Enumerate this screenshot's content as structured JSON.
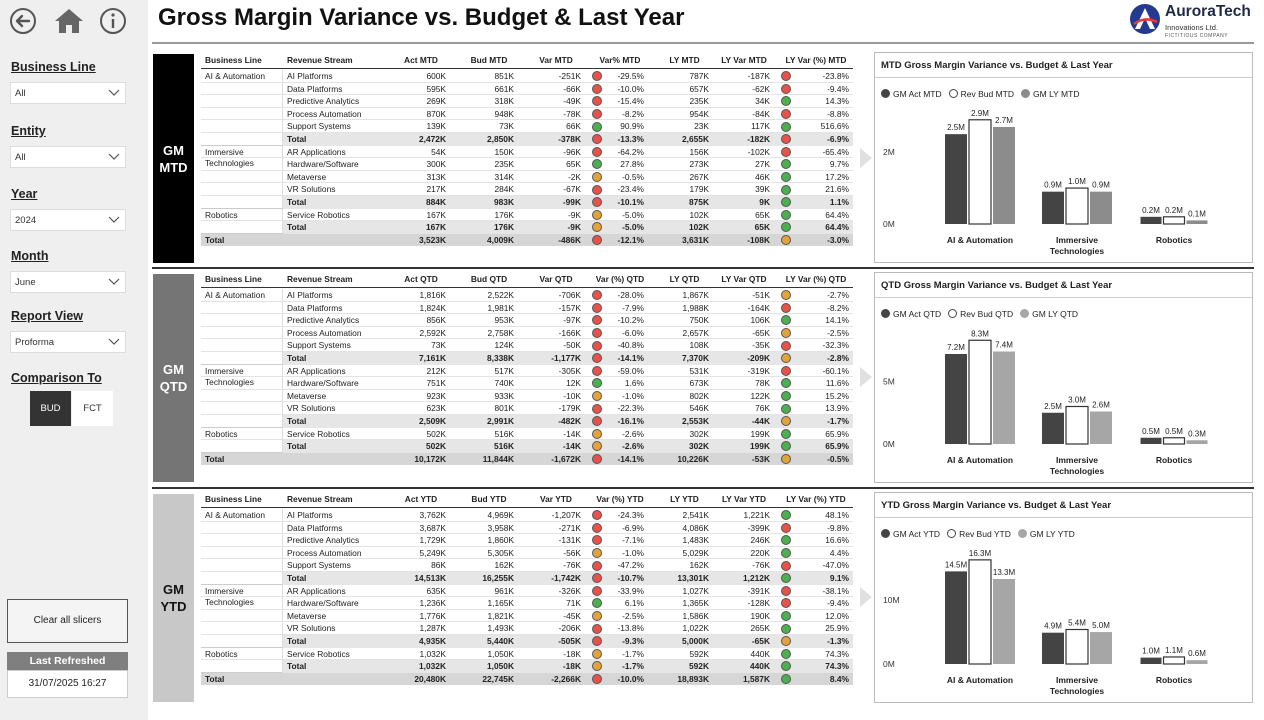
{
  "app": {
    "title": "Gross Margin Variance vs. Budget & Last Year",
    "logo_name": "AuroraTech",
    "logo_sub": "Innovations Ltd.",
    "logo_tag": "FICTITIOUS COMPANY"
  },
  "sidebar": {
    "slicers": [
      {
        "label": "Business Line",
        "value": "All"
      },
      {
        "label": "Entity",
        "value": "All"
      },
      {
        "label": "Year",
        "value": "2024"
      },
      {
        "label": "Month",
        "value": "June"
      },
      {
        "label": "Report View",
        "value": "Proforma"
      }
    ],
    "comparison_label": "Comparison To",
    "comparison_options": [
      "BUD",
      "FCT"
    ],
    "comparison_selected": "BUD",
    "clear_label": "Clear all slicers",
    "refreshed_label": "Last Refreshed",
    "refreshed_value": "31/07/2025 16:27"
  },
  "sections": [
    {
      "label_line1": "GM",
      "label_line2": "MTD",
      "headers": [
        "Business Line",
        "Revenue Stream",
        "Act MTD",
        "Bud MTD",
        "Var MTD",
        "Var% MTD",
        "LY MTD",
        "LY Var MTD",
        "LY Var (%) MTD"
      ],
      "groups": [
        {
          "name": "AI & Automation",
          "rows": [
            [
              "AI Platforms",
              "600K",
              "851K",
              "-251K",
              "red",
              "-29.5%",
              "787K",
              "-187K",
              "red",
              "-23.8%"
            ],
            [
              "Data Platforms",
              "595K",
              "661K",
              "-66K",
              "red",
              "-10.0%",
              "657K",
              "-62K",
              "red",
              "-9.4%"
            ],
            [
              "Predictive Analytics",
              "269K",
              "318K",
              "-49K",
              "red",
              "-15.4%",
              "235K",
              "34K",
              "green",
              "14.3%"
            ],
            [
              "Process Automation",
              "870K",
              "948K",
              "-78K",
              "red",
              "-8.2%",
              "954K",
              "-84K",
              "red",
              "-8.8%"
            ],
            [
              "Support Systems",
              "139K",
              "73K",
              "66K",
              "green",
              "90.9%",
              "23K",
              "117K",
              "green",
              "516.6%"
            ]
          ],
          "total": [
            "Total",
            "2,472K",
            "2,850K",
            "-378K",
            "red",
            "-13.3%",
            "2,655K",
            "-182K",
            "red",
            "-6.9%"
          ]
        },
        {
          "name": "Immersive Technologies",
          "rows": [
            [
              "AR Applications",
              "54K",
              "150K",
              "-96K",
              "red",
              "-64.2%",
              "156K",
              "-102K",
              "red",
              "-65.4%"
            ],
            [
              "Hardware/Software",
              "300K",
              "235K",
              "65K",
              "green",
              "27.8%",
              "273K",
              "27K",
              "green",
              "9.7%"
            ],
            [
              "Metaverse",
              "313K",
              "314K",
              "-2K",
              "amber",
              "-0.5%",
              "267K",
              "46K",
              "green",
              "17.2%"
            ],
            [
              "VR Solutions",
              "217K",
              "284K",
              "-67K",
              "red",
              "-23.4%",
              "179K",
              "39K",
              "green",
              "21.6%"
            ]
          ],
          "total": [
            "Total",
            "884K",
            "983K",
            "-99K",
            "red",
            "-10.1%",
            "875K",
            "9K",
            "green",
            "1.1%"
          ]
        },
        {
          "name": "Robotics",
          "rows": [
            [
              "Service Robotics",
              "167K",
              "176K",
              "-9K",
              "amber",
              "-5.0%",
              "102K",
              "65K",
              "green",
              "64.4%"
            ]
          ],
          "total": [
            "Total",
            "167K",
            "176K",
            "-9K",
            "amber",
            "-5.0%",
            "102K",
            "65K",
            "green",
            "64.4%"
          ]
        }
      ],
      "grand_total": [
        "Total",
        "3,523K",
        "4,009K",
        "-486K",
        "red",
        "-12.1%",
        "3,631K",
        "-108K",
        "amber",
        "-3.0%"
      ]
    },
    {
      "label_line1": "GM",
      "label_line2": "QTD",
      "headers": [
        "Business Line",
        "Revenue Stream",
        "Act QTD",
        "Bud QTD",
        "Var QTD",
        "Var (%) QTD",
        "LY QTD",
        "LY Var QTD",
        "LY Var (%) QTD"
      ],
      "groups": [
        {
          "name": "AI & Automation",
          "rows": [
            [
              "AI Platforms",
              "1,816K",
              "2,522K",
              "-706K",
              "red",
              "-28.0%",
              "1,867K",
              "-51K",
              "amber",
              "-2.7%"
            ],
            [
              "Data Platforms",
              "1,824K",
              "1,981K",
              "-157K",
              "red",
              "-7.9%",
              "1,988K",
              "-164K",
              "red",
              "-8.2%"
            ],
            [
              "Predictive Analytics",
              "856K",
              "953K",
              "-97K",
              "red",
              "-10.2%",
              "750K",
              "106K",
              "green",
              "14.1%"
            ],
            [
              "Process Automation",
              "2,592K",
              "2,758K",
              "-166K",
              "red",
              "-6.0%",
              "2,657K",
              "-65K",
              "amber",
              "-2.5%"
            ],
            [
              "Support Systems",
              "73K",
              "124K",
              "-50K",
              "red",
              "-40.8%",
              "108K",
              "-35K",
              "red",
              "-32.3%"
            ]
          ],
          "total": [
            "Total",
            "7,161K",
            "8,338K",
            "-1,177K",
            "red",
            "-14.1%",
            "7,370K",
            "-209K",
            "amber",
            "-2.8%"
          ]
        },
        {
          "name": "Immersive Technologies",
          "rows": [
            [
              "AR Applications",
              "212K",
              "517K",
              "-305K",
              "red",
              "-59.0%",
              "531K",
              "-319K",
              "red",
              "-60.1%"
            ],
            [
              "Hardware/Software",
              "751K",
              "740K",
              "12K",
              "green",
              "1.6%",
              "673K",
              "78K",
              "green",
              "11.6%"
            ],
            [
              "Metaverse",
              "923K",
              "933K",
              "-10K",
              "amber",
              "-1.0%",
              "802K",
              "122K",
              "green",
              "15.2%"
            ],
            [
              "VR Solutions",
              "623K",
              "801K",
              "-179K",
              "red",
              "-22.3%",
              "546K",
              "76K",
              "green",
              "13.9%"
            ]
          ],
          "total": [
            "Total",
            "2,509K",
            "2,991K",
            "-482K",
            "red",
            "-16.1%",
            "2,553K",
            "-44K",
            "amber",
            "-1.7%"
          ]
        },
        {
          "name": "Robotics",
          "rows": [
            [
              "Service Robotics",
              "502K",
              "516K",
              "-14K",
              "amber",
              "-2.6%",
              "302K",
              "199K",
              "green",
              "65.9%"
            ]
          ],
          "total": [
            "Total",
            "502K",
            "516K",
            "-14K",
            "amber",
            "-2.6%",
            "302K",
            "199K",
            "green",
            "65.9%"
          ]
        }
      ],
      "grand_total": [
        "Total",
        "10,172K",
        "11,844K",
        "-1,672K",
        "red",
        "-14.1%",
        "10,226K",
        "-53K",
        "amber",
        "-0.5%"
      ]
    },
    {
      "label_line1": "GM",
      "label_line2": "YTD",
      "headers": [
        "Business Line",
        "Revenue Stream",
        "Act YTD",
        "Bud YTD",
        "Var YTD",
        "Var (%) YTD",
        "LY YTD",
        "LY Var YTD",
        "LY Var (%) YTD"
      ],
      "groups": [
        {
          "name": "AI & Automation",
          "rows": [
            [
              "AI Platforms",
              "3,762K",
              "4,969K",
              "-1,207K",
              "red",
              "-24.3%",
              "2,541K",
              "1,221K",
              "green",
              "48.1%"
            ],
            [
              "Data Platforms",
              "3,687K",
              "3,958K",
              "-271K",
              "red",
              "-6.9%",
              "4,086K",
              "-399K",
              "red",
              "-9.8%"
            ],
            [
              "Predictive Analytics",
              "1,729K",
              "1,860K",
              "-131K",
              "red",
              "-7.1%",
              "1,483K",
              "246K",
              "green",
              "16.6%"
            ],
            [
              "Process Automation",
              "5,249K",
              "5,305K",
              "-56K",
              "amber",
              "-1.0%",
              "5,029K",
              "220K",
              "green",
              "4.4%"
            ],
            [
              "Support Systems",
              "86K",
              "162K",
              "-76K",
              "red",
              "-47.2%",
              "162K",
              "-76K",
              "red",
              "-47.0%"
            ]
          ],
          "total": [
            "Total",
            "14,513K",
            "16,255K",
            "-1,742K",
            "red",
            "-10.7%",
            "13,301K",
            "1,212K",
            "green",
            "9.1%"
          ]
        },
        {
          "name": "Immersive Technologies",
          "rows": [
            [
              "AR Applications",
              "635K",
              "961K",
              "-326K",
              "red",
              "-33.9%",
              "1,027K",
              "-391K",
              "red",
              "-38.1%"
            ],
            [
              "Hardware/Software",
              "1,236K",
              "1,165K",
              "71K",
              "green",
              "6.1%",
              "1,365K",
              "-128K",
              "red",
              "-9.4%"
            ],
            [
              "Metaverse",
              "1,776K",
              "1,821K",
              "-45K",
              "amber",
              "-2.5%",
              "1,586K",
              "190K",
              "green",
              "12.0%"
            ],
            [
              "VR Solutions",
              "1,287K",
              "1,493K",
              "-206K",
              "red",
              "-13.8%",
              "1,022K",
              "265K",
              "green",
              "25.9%"
            ]
          ],
          "total": [
            "Total",
            "4,935K",
            "5,440K",
            "-505K",
            "red",
            "-9.3%",
            "5,000K",
            "-65K",
            "amber",
            "-1.3%"
          ]
        },
        {
          "name": "Robotics",
          "rows": [
            [
              "Service Robotics",
              "1,032K",
              "1,050K",
              "-18K",
              "amber",
              "-1.7%",
              "592K",
              "440K",
              "green",
              "74.3%"
            ]
          ],
          "total": [
            "Total",
            "1,032K",
            "1,050K",
            "-18K",
            "amber",
            "-1.7%",
            "592K",
            "440K",
            "green",
            "74.3%"
          ]
        }
      ],
      "grand_total": [
        "Total",
        "20,480K",
        "22,745K",
        "-2,266K",
        "red",
        "-10.0%",
        "18,893K",
        "1,587K",
        "green",
        "8.4%"
      ]
    }
  ],
  "chart_data": [
    {
      "type": "bar",
      "title": "MTD Gross Margin Variance vs.  Budget & Last Year",
      "categories": [
        "AI & Automation",
        "Immersive Technologies",
        "Robotics"
      ],
      "series": [
        {
          "name": "GM Act MTD",
          "values": [
            2.5,
            0.9,
            0.2
          ],
          "labels": [
            "2.5M",
            "0.9M",
            "0.2M"
          ],
          "color": "#444444"
        },
        {
          "name": "Rev Bud MTD",
          "values": [
            2.9,
            1.0,
            0.2
          ],
          "labels": [
            "2.9M",
            "1.0M",
            "0.2M"
          ],
          "color": "#ffffff"
        },
        {
          "name": "GM LY MTD",
          "values": [
            2.7,
            0.9,
            0.1
          ],
          "labels": [
            "2.7M",
            "0.9M",
            "0.1M"
          ],
          "color": "#8c8c8c"
        }
      ],
      "yticks": [
        0,
        2
      ],
      "ytick_labels": [
        "0M",
        "2M"
      ],
      "ylim": [
        0,
        3.2
      ]
    },
    {
      "type": "bar",
      "title": "QTD Gross Margin Variance vs.  Budget & Last Year",
      "categories": [
        "AI & Automation",
        "Immersive Technologies",
        "Robotics"
      ],
      "series": [
        {
          "name": "GM Act QTD",
          "values": [
            7.2,
            2.5,
            0.5
          ],
          "labels": [
            "7.2M",
            "2.5M",
            "0.5M"
          ],
          "color": "#444444"
        },
        {
          "name": "Rev Bud QTD",
          "values": [
            8.3,
            3.0,
            0.5
          ],
          "labels": [
            "8.3M",
            "3.0M",
            "0.5M"
          ],
          "color": "#ffffff"
        },
        {
          "name": "GM LY QTD",
          "values": [
            7.4,
            2.6,
            0.3
          ],
          "labels": [
            "7.4M",
            "2.6M",
            "0.3M"
          ],
          "color": "#a6a6a6"
        }
      ],
      "yticks": [
        0,
        5
      ],
      "ytick_labels": [
        "0M",
        "5M"
      ],
      "ylim": [
        0,
        9.2
      ]
    },
    {
      "type": "bar",
      "title": "YTD Gross Margin Variance vs.  Budget & Last Year",
      "categories": [
        "AI & Automation",
        "Immersive Technologies",
        "Robotics"
      ],
      "series": [
        {
          "name": "GM Act YTD",
          "values": [
            14.5,
            4.9,
            1.0
          ],
          "labels": [
            "14.5M",
            "4.9M",
            "1.0M"
          ],
          "color": "#444444"
        },
        {
          "name": "Rev Bud YTD",
          "values": [
            16.3,
            5.4,
            1.1
          ],
          "labels": [
            "16.3M",
            "5.4M",
            "1.1M"
          ],
          "color": "#ffffff"
        },
        {
          "name": "GM LY YTD",
          "values": [
            13.3,
            5.0,
            0.6
          ],
          "labels": [
            "13.3M",
            "5.0M",
            "0.6M"
          ],
          "color": "#a6a6a6"
        }
      ],
      "yticks": [
        0,
        10
      ],
      "ytick_labels": [
        "0M",
        "10M"
      ],
      "ylim": [
        0,
        18
      ]
    }
  ]
}
